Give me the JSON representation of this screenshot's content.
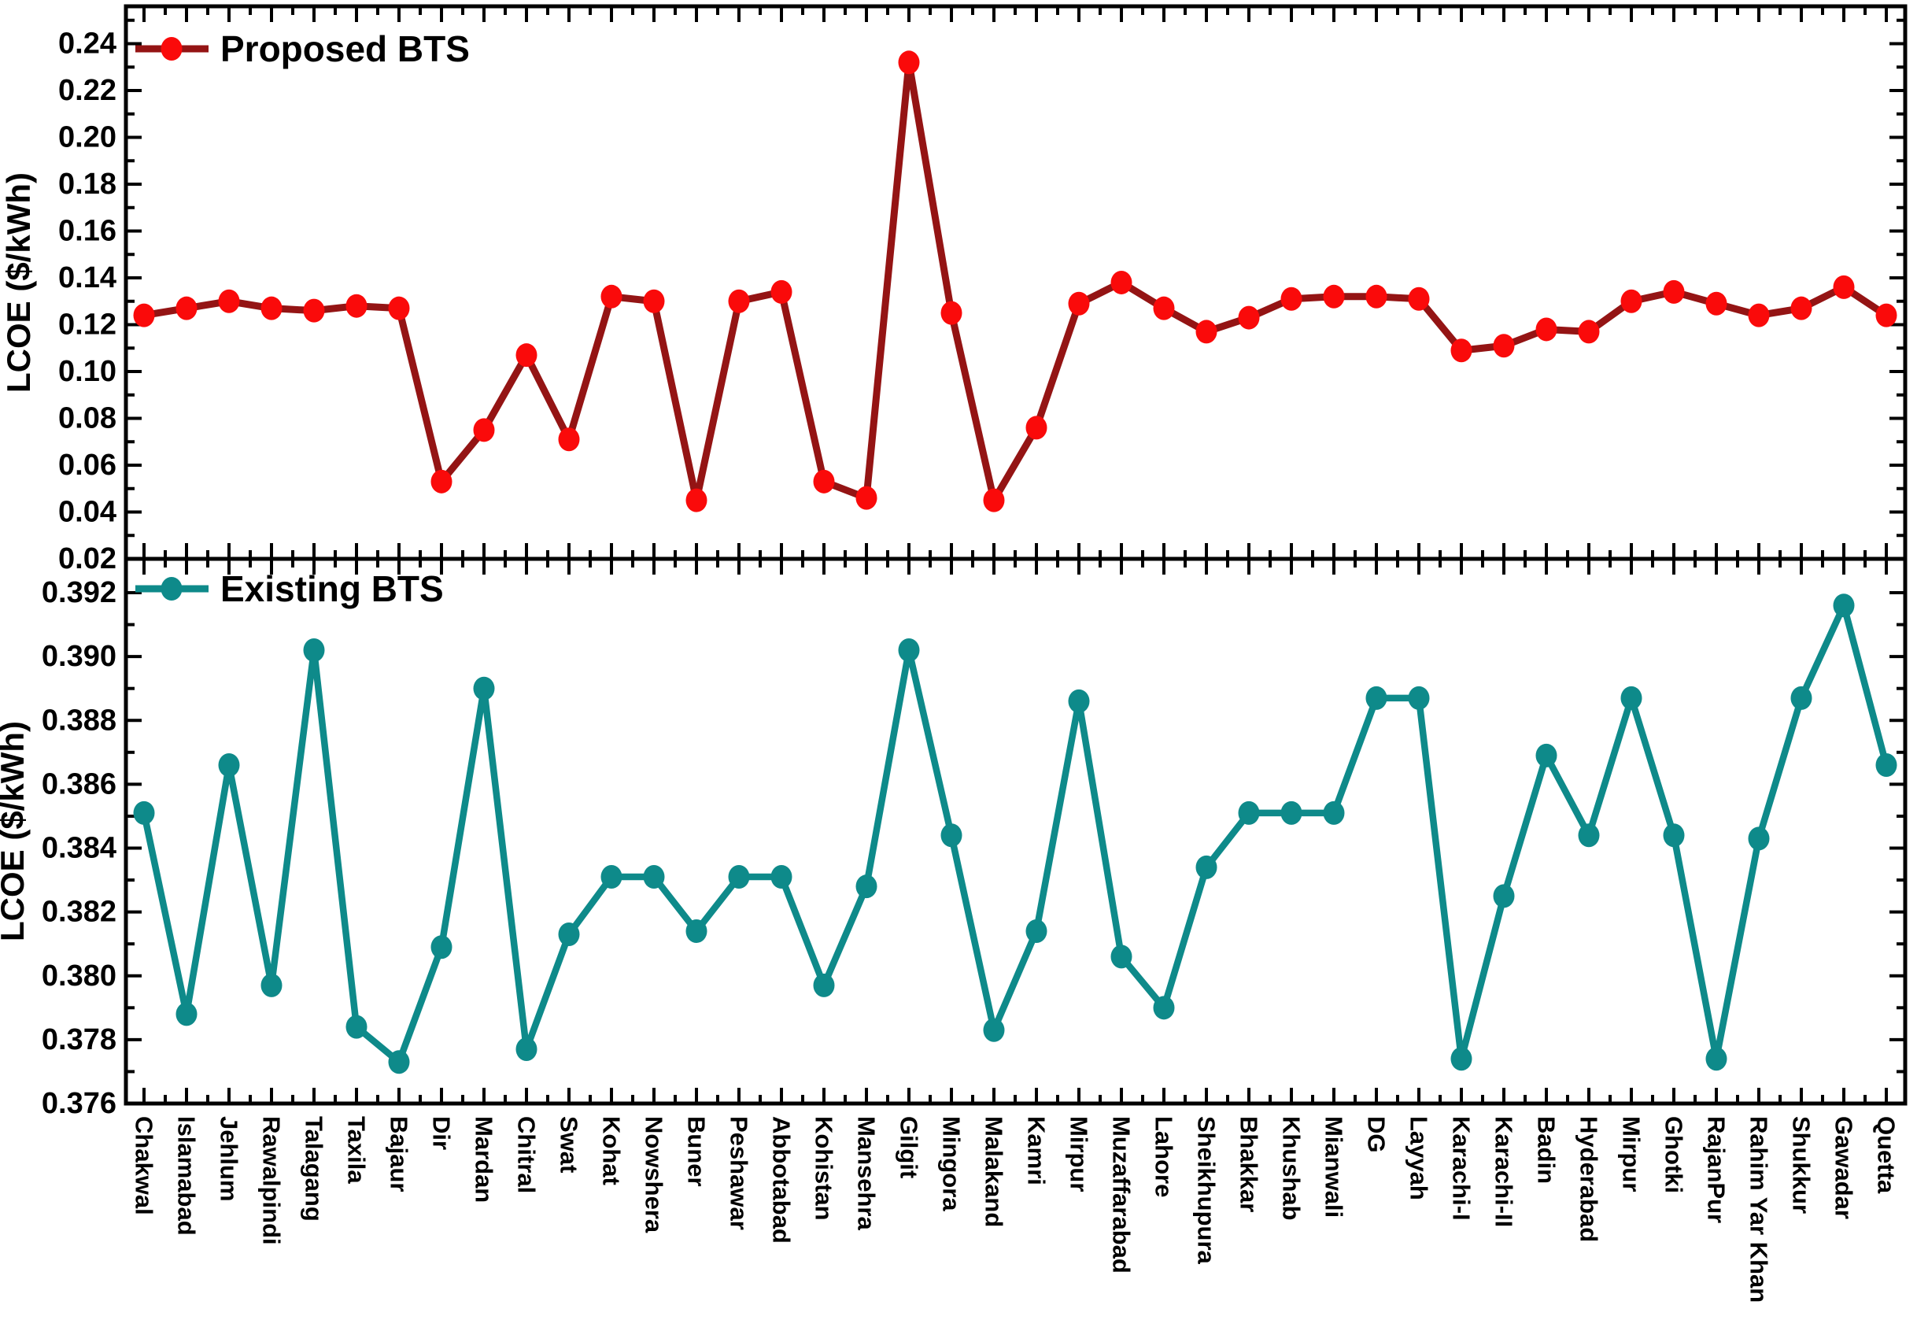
{
  "chart_data": {
    "type": "line",
    "title": "",
    "background": "#ffffff",
    "text_color": "#000000",
    "grid": false,
    "categories": [
      "Chakwal",
      "Islamabad",
      "Jehlum",
      "Rawalpindi",
      "Talagang",
      "Taxila",
      "Bajaur",
      "Dir",
      "Mardan",
      "Chitral",
      "Swat",
      "Kohat",
      "Nowshera",
      "Buner",
      "Peshawar",
      "Abbotabad",
      "Kohistan",
      "Mansehra",
      "Gilgit",
      "Mingora",
      "Malakand",
      "Kamri",
      "Mirpur",
      "Muzaffarabad",
      "Lahore",
      "Sheikhupura",
      "Bhakkar",
      "Khushab",
      "Mianwali",
      "DG",
      "Layyah",
      "Karachi-I",
      "Karachi-II",
      "Badin",
      "Hyderabad",
      "Mirpur",
      "Ghotki",
      "RajanPur",
      "Rahim Yar Khan",
      "Shukkur",
      "Gawadar",
      "Quetta"
    ],
    "series": [
      {
        "name": "Proposed BTS",
        "panel": "top",
        "line_color": "#941414",
        "marker_color": "#fa0a0a",
        "values": [
          0.124,
          0.127,
          0.13,
          0.127,
          0.126,
          0.128,
          0.127,
          0.053,
          0.075,
          0.107,
          0.071,
          0.132,
          0.13,
          0.045,
          0.13,
          0.134,
          0.053,
          0.046,
          0.232,
          0.125,
          0.045,
          0.076,
          0.129,
          0.138,
          0.127,
          0.117,
          0.123,
          0.131,
          0.132,
          0.132,
          0.131,
          0.109,
          0.111,
          0.118,
          0.117,
          0.13,
          0.134,
          0.129,
          0.124,
          0.127,
          0.136,
          0.124
        ]
      },
      {
        "name": "Existing BTS",
        "panel": "bottom",
        "line_color": "#0e8a8a",
        "marker_color": "#0e8a8a",
        "values": [
          0.3851,
          0.3788,
          0.3866,
          0.3797,
          0.3902,
          0.3784,
          0.3773,
          0.3809,
          0.389,
          0.3777,
          0.3813,
          0.3831,
          0.3831,
          0.3814,
          0.3831,
          0.3831,
          0.3797,
          0.3828,
          0.3902,
          0.3844,
          0.3783,
          0.3814,
          0.3886,
          0.3806,
          0.379,
          0.3834,
          0.3851,
          0.3851,
          0.3851,
          0.3887,
          0.3887,
          0.3774,
          0.3825,
          0.3869,
          0.3844,
          0.3887,
          0.3844,
          0.3774,
          0.3843,
          0.3887,
          0.3916,
          0.3866
        ]
      }
    ],
    "axes": {
      "top_y": {
        "label": "LCOE ($/kWh)",
        "min": 0.02,
        "max": 0.24,
        "major_step": 0.02,
        "minor_step": 0.01,
        "tick_labels": [
          "0.02",
          "0.04",
          "0.06",
          "0.08",
          "0.10",
          "0.12",
          "0.14",
          "0.16",
          "0.18",
          "0.20",
          "0.22",
          "0.24"
        ]
      },
      "bottom_y": {
        "label": "LCOE ($/kWh)",
        "min": 0.376,
        "max": 0.392,
        "major_step": 0.002,
        "minor_step": 0.001,
        "tick_labels": [
          "0.376",
          "0.378",
          "0.380",
          "0.382",
          "0.384",
          "0.386",
          "0.388",
          "0.390",
          "0.392"
        ]
      },
      "x": {
        "label": "",
        "tick_labels": [
          "Chakwal",
          "Islamabad",
          "Jehlum",
          "Rawalpindi",
          "Talagang",
          "Taxila",
          "Bajaur",
          "Dir",
          "Mardan",
          "Chitral",
          "Swat",
          "Kohat",
          "Nowshera",
          "Buner",
          "Peshawar",
          "Abbotabad",
          "Kohistan",
          "Mansehra",
          "Gilgit",
          "Mingora",
          "Malakand",
          "Kamri",
          "Mirpur",
          "Muzaffarabad",
          "Lahore",
          "Sheikhupura",
          "Bhakkar",
          "Khushab",
          "Mianwali",
          "DG",
          "Layyah",
          "Karachi-I",
          "Karachi-II",
          "Badin",
          "Hyderabad",
          "Mirpur",
          "Ghotki",
          "RajanPur",
          "Rahim Yar Khan",
          "Shukkur",
          "Gawadar",
          "Quetta"
        ]
      }
    },
    "legend": {
      "top": "Proposed BTS",
      "bottom": "Existing BTS",
      "position": "top-left-inside"
    }
  }
}
